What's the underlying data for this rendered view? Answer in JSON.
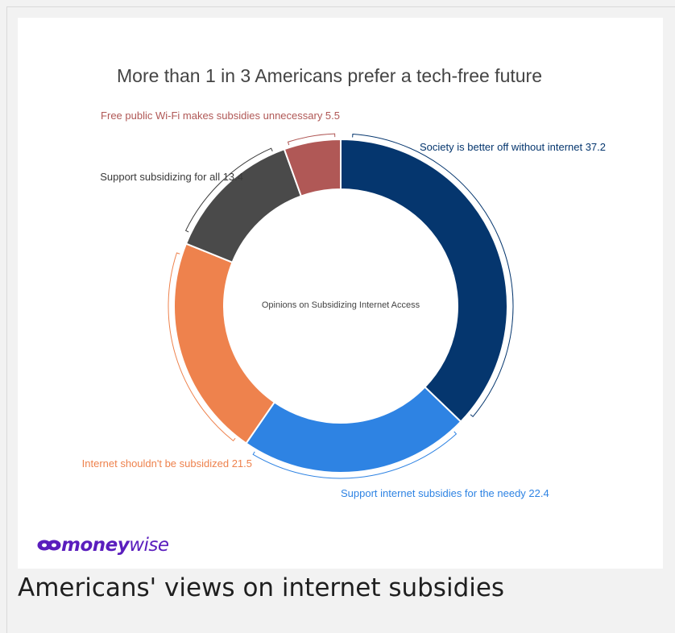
{
  "chart_data": {
    "type": "pie",
    "title": "More than 1 in 3 Americans prefer a tech-free future",
    "center_label": "Opinions on Subsidizing Internet Access",
    "categories": [
      "Society is better off without internet",
      "Support internet subsidies for the needy",
      "Internet shouldn't be subsidized",
      "Support subsidizing for all",
      "Free public Wi-Fi makes subsidies unnecessary"
    ],
    "values": [
      37.2,
      22.4,
      21.5,
      13.4,
      5.5
    ],
    "colors": [
      "#05366e",
      "#2e83e3",
      "#ee824d",
      "#4a4a4a",
      "#b05856"
    ],
    "label_colors": [
      "#05366e",
      "#2e83e3",
      "#ee824d",
      "#3a3a3a",
      "#b05856"
    ],
    "slice_labels": [
      "Society is better off without internet 37.2",
      "Support internet subsidies for the needy 22.4",
      "Internet shouldn't be subsidized 21.5",
      "Support subsidizing for all 13.4",
      "Free public Wi-Fi makes subsidies unnecessary 5.5"
    ]
  },
  "logo": {
    "bold": "money",
    "light": "wise",
    "color": "#5a1dbd",
    "icon": "moneywise-logo-icon"
  },
  "caption": "Americans' views on internet subsidies"
}
